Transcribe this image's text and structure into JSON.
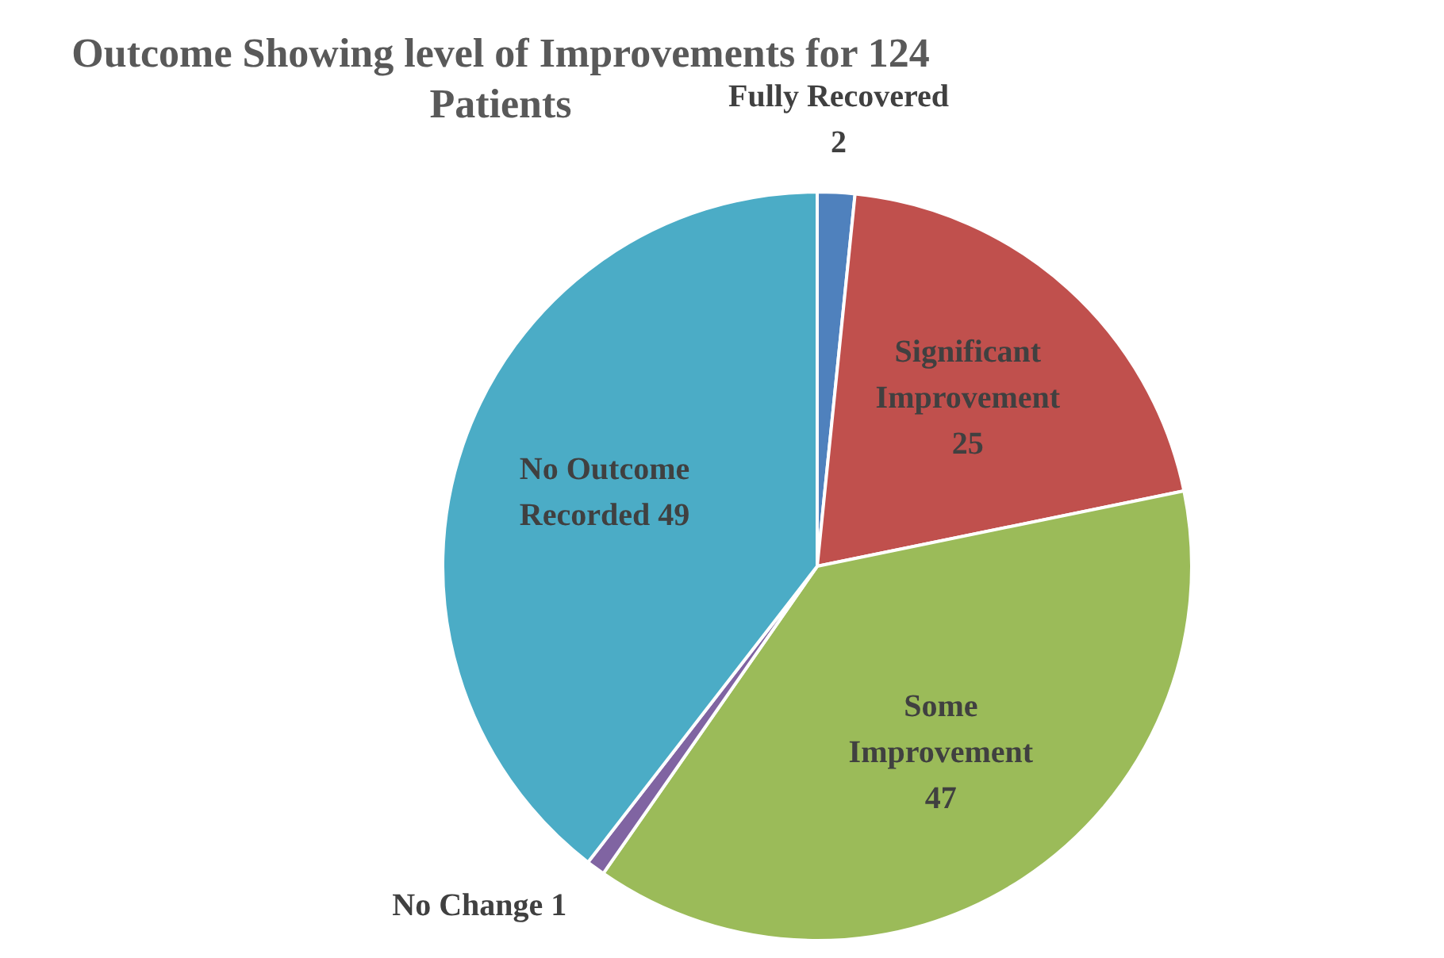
{
  "chart_data": {
    "type": "pie",
    "title": "Outcome Showing level of Improvements for 124 Patients",
    "categories": [
      "Fully Recovered",
      "Significant Improvement",
      "Some Improvement",
      "No Change",
      "No Outcome Recorded"
    ],
    "values": [
      2,
      25,
      47,
      1,
      49
    ],
    "colors": [
      "#4f81bd",
      "#c0504d",
      "#9bbb59",
      "#8064a2",
      "#4bacc6"
    ],
    "data_labels": true
  }
}
